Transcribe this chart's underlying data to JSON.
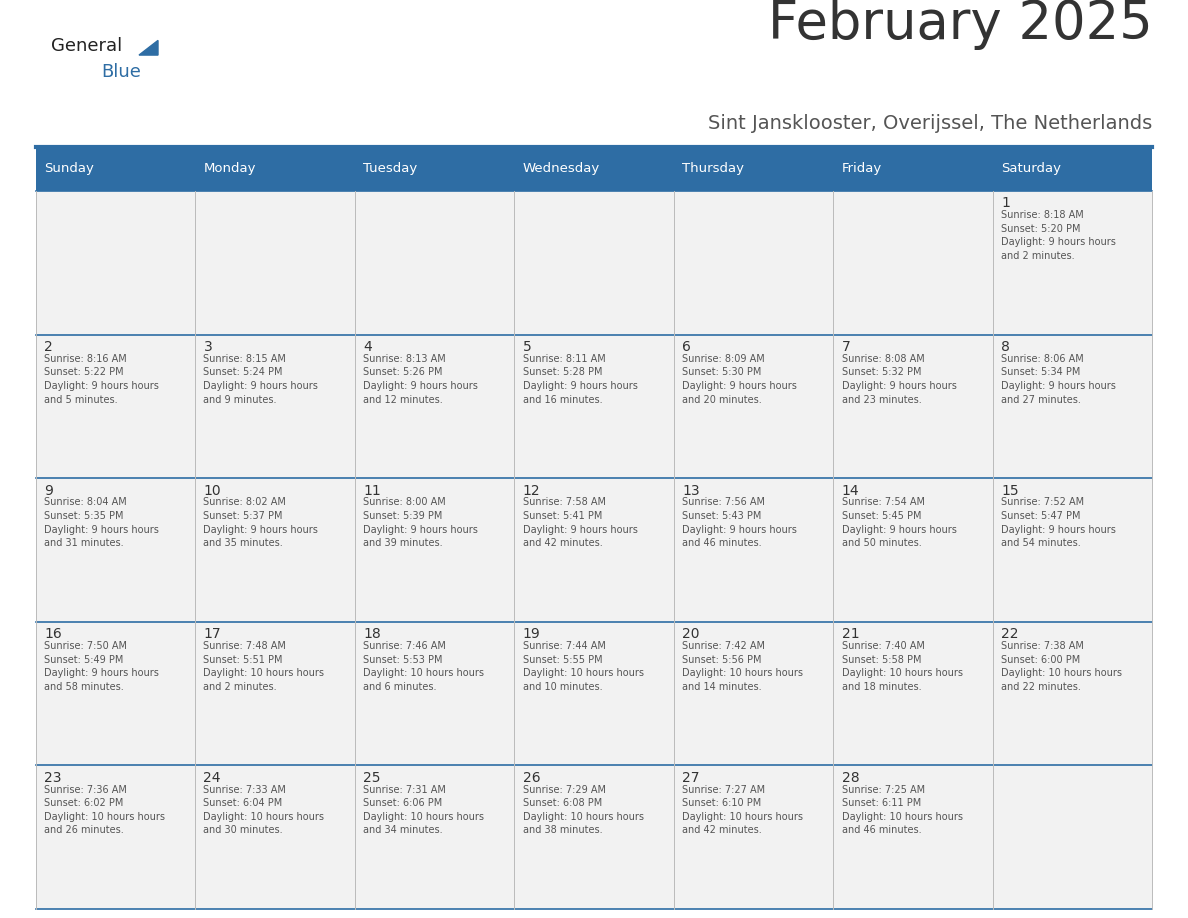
{
  "title": "February 2025",
  "subtitle": "Sint Jansklooster, Overijssel, The Netherlands",
  "header_bg_color": "#2E6DA4",
  "header_text_color": "#FFFFFF",
  "cell_bg_color": "#F2F2F2",
  "border_color": "#2E6DA4",
  "row_line_color": "#2E6DA4",
  "col_line_color": "#BBBBBB",
  "day_names": [
    "Sunday",
    "Monday",
    "Tuesday",
    "Wednesday",
    "Thursday",
    "Friday",
    "Saturday"
  ],
  "title_color": "#333333",
  "subtitle_color": "#555555",
  "day_number_color": "#333333",
  "day_detail_color": "#555555",
  "logo_general_color": "#222222",
  "logo_blue_color": "#2E6DA4",
  "calendar": [
    [
      null,
      null,
      null,
      null,
      null,
      null,
      {
        "day": 1,
        "sunrise": "8:18 AM",
        "sunset": "5:20 PM",
        "daylight": "9 hours and 2 minutes"
      }
    ],
    [
      {
        "day": 2,
        "sunrise": "8:16 AM",
        "sunset": "5:22 PM",
        "daylight": "9 hours and 5 minutes"
      },
      {
        "day": 3,
        "sunrise": "8:15 AM",
        "sunset": "5:24 PM",
        "daylight": "9 hours and 9 minutes"
      },
      {
        "day": 4,
        "sunrise": "8:13 AM",
        "sunset": "5:26 PM",
        "daylight": "9 hours and 12 minutes"
      },
      {
        "day": 5,
        "sunrise": "8:11 AM",
        "sunset": "5:28 PM",
        "daylight": "9 hours and 16 minutes"
      },
      {
        "day": 6,
        "sunrise": "8:09 AM",
        "sunset": "5:30 PM",
        "daylight": "9 hours and 20 minutes"
      },
      {
        "day": 7,
        "sunrise": "8:08 AM",
        "sunset": "5:32 PM",
        "daylight": "9 hours and 23 minutes"
      },
      {
        "day": 8,
        "sunrise": "8:06 AM",
        "sunset": "5:34 PM",
        "daylight": "9 hours and 27 minutes"
      }
    ],
    [
      {
        "day": 9,
        "sunrise": "8:04 AM",
        "sunset": "5:35 PM",
        "daylight": "9 hours and 31 minutes"
      },
      {
        "day": 10,
        "sunrise": "8:02 AM",
        "sunset": "5:37 PM",
        "daylight": "9 hours and 35 minutes"
      },
      {
        "day": 11,
        "sunrise": "8:00 AM",
        "sunset": "5:39 PM",
        "daylight": "9 hours and 39 minutes"
      },
      {
        "day": 12,
        "sunrise": "7:58 AM",
        "sunset": "5:41 PM",
        "daylight": "9 hours and 42 minutes"
      },
      {
        "day": 13,
        "sunrise": "7:56 AM",
        "sunset": "5:43 PM",
        "daylight": "9 hours and 46 minutes"
      },
      {
        "day": 14,
        "sunrise": "7:54 AM",
        "sunset": "5:45 PM",
        "daylight": "9 hours and 50 minutes"
      },
      {
        "day": 15,
        "sunrise": "7:52 AM",
        "sunset": "5:47 PM",
        "daylight": "9 hours and 54 minutes"
      }
    ],
    [
      {
        "day": 16,
        "sunrise": "7:50 AM",
        "sunset": "5:49 PM",
        "daylight": "9 hours and 58 minutes"
      },
      {
        "day": 17,
        "sunrise": "7:48 AM",
        "sunset": "5:51 PM",
        "daylight": "10 hours and 2 minutes"
      },
      {
        "day": 18,
        "sunrise": "7:46 AM",
        "sunset": "5:53 PM",
        "daylight": "10 hours and 6 minutes"
      },
      {
        "day": 19,
        "sunrise": "7:44 AM",
        "sunset": "5:55 PM",
        "daylight": "10 hours and 10 minutes"
      },
      {
        "day": 20,
        "sunrise": "7:42 AM",
        "sunset": "5:56 PM",
        "daylight": "10 hours and 14 minutes"
      },
      {
        "day": 21,
        "sunrise": "7:40 AM",
        "sunset": "5:58 PM",
        "daylight": "10 hours and 18 minutes"
      },
      {
        "day": 22,
        "sunrise": "7:38 AM",
        "sunset": "6:00 PM",
        "daylight": "10 hours and 22 minutes"
      }
    ],
    [
      {
        "day": 23,
        "sunrise": "7:36 AM",
        "sunset": "6:02 PM",
        "daylight": "10 hours and 26 minutes"
      },
      {
        "day": 24,
        "sunrise": "7:33 AM",
        "sunset": "6:04 PM",
        "daylight": "10 hours and 30 minutes"
      },
      {
        "day": 25,
        "sunrise": "7:31 AM",
        "sunset": "6:06 PM",
        "daylight": "10 hours and 34 minutes"
      },
      {
        "day": 26,
        "sunrise": "7:29 AM",
        "sunset": "6:08 PM",
        "daylight": "10 hours and 38 minutes"
      },
      {
        "day": 27,
        "sunrise": "7:27 AM",
        "sunset": "6:10 PM",
        "daylight": "10 hours and 42 minutes"
      },
      {
        "day": 28,
        "sunrise": "7:25 AM",
        "sunset": "6:11 PM",
        "daylight": "10 hours and 46 minutes"
      },
      null
    ]
  ]
}
